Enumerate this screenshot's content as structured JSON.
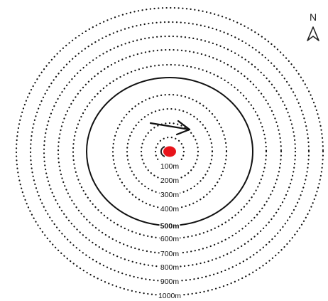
{
  "rings": [
    {
      "label": "100m",
      "style": "dotted",
      "bold": false
    },
    {
      "label": "200m",
      "style": "dotted",
      "bold": false
    },
    {
      "label": "300m",
      "style": "dotted",
      "bold": false
    },
    {
      "label": "400m",
      "style": "dotted",
      "bold": false
    },
    {
      "label": "500m",
      "style": "solid",
      "bold": true
    },
    {
      "label": "600m",
      "style": "dotted",
      "bold": false
    },
    {
      "label": "700m",
      "style": "dotted",
      "bold": false
    },
    {
      "label": "800m",
      "style": "dotted",
      "bold": false
    },
    {
      "label": "900m",
      "style": "dotted",
      "bold": false
    },
    {
      "label": "1000m",
      "style": "dotted",
      "bold": false
    }
  ],
  "compass": {
    "letter": "N",
    "icon": "north-arrow-icon"
  },
  "center_marker": {
    "icon": "red-dot-icon",
    "color": "#e8141b"
  },
  "direction": {
    "icon": "arrow-icon",
    "color": "#111111"
  }
}
